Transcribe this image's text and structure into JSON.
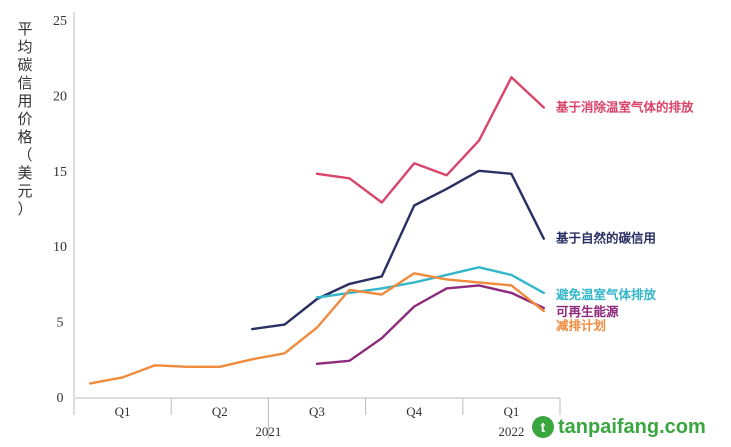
{
  "chart_data": {
    "type": "line",
    "title": "",
    "ylabel": "平均碳信用价格（美元）",
    "ylim": [
      0,
      25
    ],
    "yticks": [
      0,
      5,
      10,
      15,
      20,
      25
    ],
    "xlim": [
      0,
      15
    ],
    "quarters": [
      "Q1",
      "Q2",
      "Q3",
      "Q4",
      "Q1"
    ],
    "years": [
      "2021",
      "2022"
    ],
    "series": [
      {
        "name": "基于消除温室气体的排放",
        "color": "#d9456a",
        "x": [
          7.5,
          8.5,
          9.5,
          10.5,
          11.5,
          12.5,
          13.5,
          14.5
        ],
        "y": [
          14.8,
          14.5,
          12.9,
          15.5,
          14.7,
          17.0,
          21.2,
          19.2
        ]
      },
      {
        "name": "基于自然的碳信用",
        "color": "#2a2f63",
        "x": [
          5.5,
          6.5,
          7.5,
          8.5,
          9.5,
          10.5,
          11.5,
          12.5,
          13.5,
          14.5
        ],
        "y": [
          4.5,
          4.8,
          6.5,
          7.5,
          8.0,
          12.7,
          13.8,
          15.0,
          14.8,
          10.5
        ]
      },
      {
        "name": "避免温室气体排放",
        "color": "#35b7c9",
        "x": [
          7.5,
          8.5,
          9.5,
          10.5,
          11.5,
          12.5,
          13.5,
          14.5
        ],
        "y": [
          6.6,
          6.9,
          7.2,
          7.6,
          8.1,
          8.6,
          8.1,
          6.9
        ]
      },
      {
        "name": "可再生能源",
        "color": "#8e2a7c",
        "x": [
          7.5,
          8.5,
          9.5,
          10.5,
          11.5,
          12.5,
          13.5,
          14.5
        ],
        "y": [
          2.2,
          2.4,
          3.9,
          6.0,
          7.2,
          7.4,
          6.9,
          5.9
        ]
      },
      {
        "name": "减排计划",
        "color": "#f08a3c",
        "x": [
          0.5,
          1.5,
          2.5,
          3.5,
          4.5,
          5.5,
          6.5,
          7.5,
          8.5,
          9.5,
          10.5,
          11.5,
          12.5,
          13.5,
          14.5
        ],
        "y": [
          0.9,
          1.3,
          2.1,
          2.0,
          2.0,
          2.5,
          2.9,
          4.6,
          7.1,
          6.8,
          8.2,
          7.8,
          7.6,
          7.4,
          5.7
        ]
      }
    ]
  },
  "watermark": {
    "logo_letter": "t",
    "text": "tanpaifang.com"
  }
}
